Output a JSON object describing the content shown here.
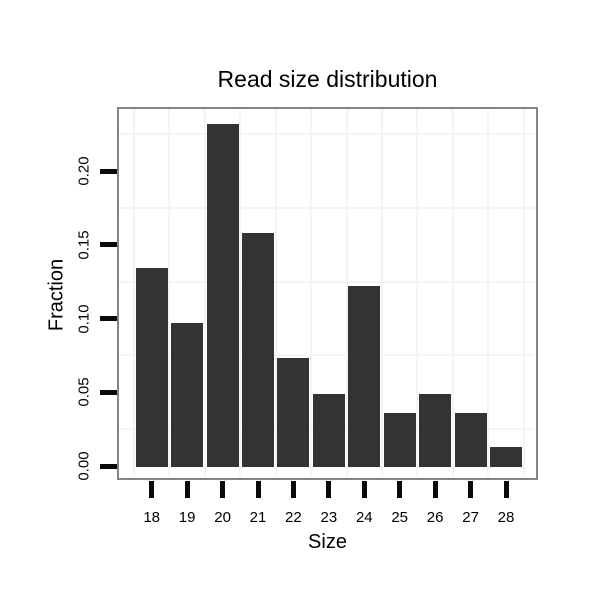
{
  "chart_data": {
    "type": "bar",
    "title": "Read size distribution",
    "xlabel": "Size",
    "ylabel": "Fraction",
    "categories": [
      "18",
      "19",
      "20",
      "21",
      "22",
      "23",
      "24",
      "25",
      "26",
      "27",
      "28"
    ],
    "values": [
      0.134,
      0.097,
      0.232,
      0.158,
      0.073,
      0.049,
      0.122,
      0.036,
      0.049,
      0.036,
      0.013
    ],
    "y_ticks": [
      {
        "label": "0.00",
        "value": 0.0
      },
      {
        "label": "0.05",
        "value": 0.05
      },
      {
        "label": "0.10",
        "value": 0.1
      },
      {
        "label": "0.15",
        "value": 0.15
      },
      {
        "label": "0.20",
        "value": 0.2
      }
    ],
    "ylim": [
      0,
      0.2435
    ],
    "minor_grid_step": 0.025,
    "grid": {
      "horizontal_minor": "on",
      "vertical_minor": "between-categories",
      "major": "white-invisible"
    },
    "legend": "none",
    "colors": {
      "bar": "#333333",
      "panel_border": "#858585",
      "minor_grid": "#f4f4f4",
      "tick": "#0a0a0a",
      "text": "#000000",
      "panel_bg": "#ffffff",
      "page_bg": "#ffffff"
    }
  }
}
